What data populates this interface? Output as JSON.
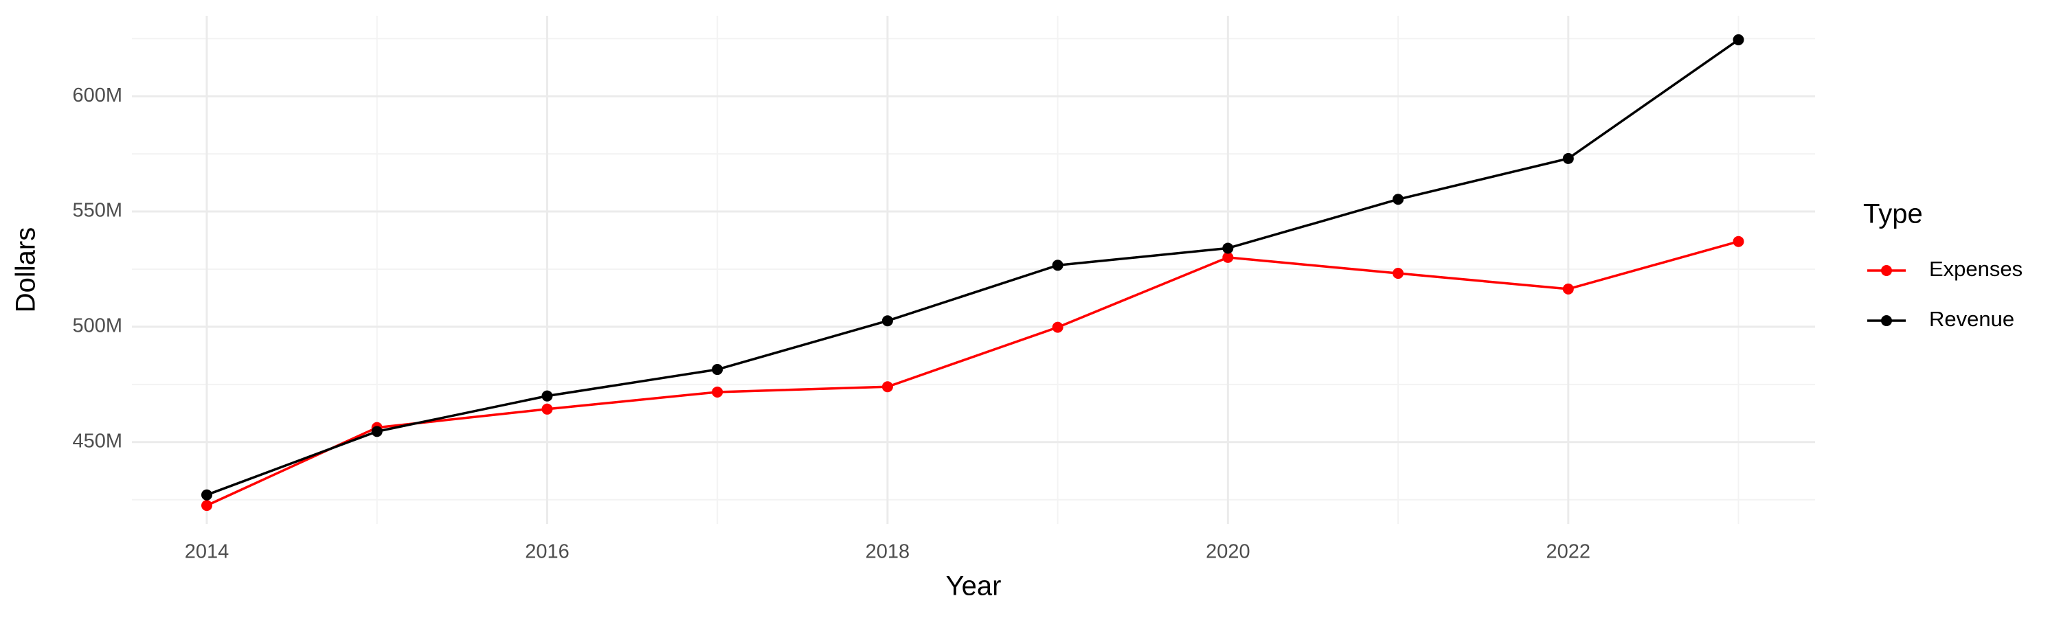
{
  "chart_data": {
    "type": "line",
    "x_label": "Year",
    "y_label": "Dollars",
    "x": [
      2014,
      2015,
      2016,
      2017,
      2018,
      2019,
      2020,
      2021,
      2022,
      2023
    ],
    "series": [
      {
        "name": "Expenses",
        "color": "#ff0000",
        "values": [
          422.5,
          456.3,
          464.3,
          471.7,
          474.0,
          499.8,
          530.1,
          523.2,
          516.4,
          537.0
        ]
      },
      {
        "name": "Revenue",
        "color": "#000000",
        "values": [
          427.1,
          454.6,
          470.0,
          481.5,
          502.6,
          526.7,
          534.1,
          555.3,
          573.0,
          624.5
        ]
      }
    ],
    "xlim": [
      2013.56,
      2023.45
    ],
    "xticks": [
      2014,
      2016,
      2018,
      2020,
      2022
    ],
    "ylim": [
      414.5,
      634.9
    ],
    "yticks": [
      {
        "value": 450,
        "label": "450M"
      },
      {
        "value": 500,
        "label": "500M"
      },
      {
        "value": 550,
        "label": "550M"
      },
      {
        "value": 600,
        "label": "600M"
      }
    ],
    "legend_title": "Type",
    "legend_position": "right",
    "grid": true
  }
}
